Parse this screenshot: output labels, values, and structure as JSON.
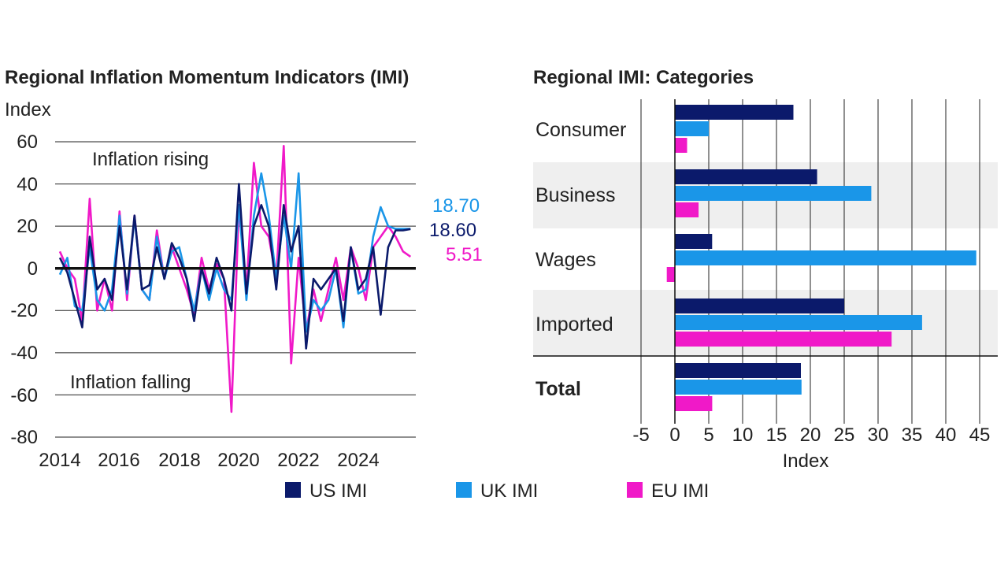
{
  "chart_data": [
    {
      "type": "line",
      "title": "Regional Inflation Momentum Indicators (IMI)",
      "ylabel": "Index",
      "ylim": [
        -80,
        60
      ],
      "yticks": [
        60,
        40,
        20,
        0,
        -20,
        -40,
        -60,
        -80
      ],
      "xlim": [
        2014,
        2025.8
      ],
      "xticks": [
        "2014",
        "2016",
        "2018",
        "2020",
        "2022",
        "2024"
      ],
      "annotations": {
        "rising": "Inflation rising",
        "falling": "Inflation falling"
      },
      "end_labels": [
        "18.70",
        "18.60",
        "5.51"
      ],
      "series": [
        {
          "name": "US IMI",
          "color": "#0b1a6b",
          "x": [
            2014.0,
            2014.25,
            2014.5,
            2014.75,
            2015.0,
            2015.25,
            2015.5,
            2015.75,
            2016.0,
            2016.25,
            2016.5,
            2016.75,
            2017.0,
            2017.25,
            2017.5,
            2017.75,
            2018.0,
            2018.25,
            2018.5,
            2018.75,
            2019.0,
            2019.25,
            2019.5,
            2019.75,
            2020.0,
            2020.25,
            2020.5,
            2020.75,
            2021.0,
            2021.25,
            2021.5,
            2021.75,
            2022.0,
            2022.25,
            2022.5,
            2022.75,
            2023.0,
            2023.25,
            2023.5,
            2023.75,
            2024.0,
            2024.25,
            2024.5,
            2024.75,
            2025.0,
            2025.25,
            2025.5,
            2025.75
          ],
          "y": [
            5,
            -2,
            -15,
            -28,
            15,
            -10,
            -5,
            -15,
            20,
            -10,
            25,
            -10,
            -8,
            10,
            -5,
            12,
            5,
            -5,
            -25,
            0,
            -12,
            5,
            -5,
            -20,
            40,
            -12,
            20,
            30,
            20,
            -10,
            30,
            8,
            20,
            -38,
            -5,
            -10,
            -5,
            0,
            -25,
            10,
            -10,
            -5,
            10,
            -22,
            10,
            18,
            18,
            18.6
          ]
        },
        {
          "name": "UK IMI",
          "color": "#1a96e8",
          "x": [
            2014.0,
            2014.25,
            2014.5,
            2014.75,
            2015.0,
            2015.25,
            2015.5,
            2015.75,
            2016.0,
            2016.25,
            2016.5,
            2016.75,
            2017.0,
            2017.25,
            2017.5,
            2017.75,
            2018.0,
            2018.25,
            2018.5,
            2018.75,
            2019.0,
            2019.25,
            2019.5,
            2019.75,
            2020.0,
            2020.25,
            2020.5,
            2020.75,
            2021.0,
            2021.25,
            2021.5,
            2021.75,
            2022.0,
            2022.25,
            2022.5,
            2022.75,
            2023.0,
            2023.25,
            2023.5,
            2023.75,
            2024.0,
            2024.25,
            2024.5,
            2024.75,
            2025.0,
            2025.25,
            2025.5,
            2025.75
          ],
          "y": [
            -3,
            5,
            -18,
            -20,
            10,
            -15,
            -20,
            -10,
            25,
            -12,
            24,
            -10,
            -15,
            15,
            -5,
            8,
            10,
            -5,
            -20,
            0,
            -15,
            0,
            -10,
            -15,
            30,
            -15,
            25,
            45,
            25,
            -5,
            25,
            0,
            45,
            -30,
            -15,
            -20,
            -15,
            0,
            -28,
            10,
            -12,
            -10,
            15,
            29,
            20,
            18.7,
            18.7,
            18.7
          ]
        },
        {
          "name": "EU IMI",
          "color": "#f019c8",
          "x": [
            2014.0,
            2014.25,
            2014.5,
            2014.75,
            2015.0,
            2015.25,
            2015.5,
            2015.75,
            2016.0,
            2016.25,
            2016.5,
            2016.75,
            2017.0,
            2017.25,
            2017.5,
            2017.75,
            2018.0,
            2018.25,
            2018.5,
            2018.75,
            2019.0,
            2019.25,
            2019.5,
            2019.75,
            2020.0,
            2020.25,
            2020.5,
            2020.75,
            2021.0,
            2021.25,
            2021.5,
            2021.75,
            2022.0,
            2022.25,
            2022.5,
            2022.75,
            2023.0,
            2023.25,
            2023.5,
            2023.75,
            2024.0,
            2024.25,
            2024.5,
            2024.75,
            2025.0,
            2025.25,
            2025.5,
            2025.75
          ],
          "y": [
            8,
            0,
            -5,
            -25,
            33,
            -20,
            -5,
            -20,
            27,
            -15,
            25,
            -10,
            -15,
            18,
            -5,
            10,
            0,
            -10,
            -22,
            5,
            -10,
            2,
            -5,
            -68,
            30,
            -10,
            50,
            20,
            15,
            -5,
            58,
            -45,
            5,
            -30,
            -10,
            -25,
            -10,
            5,
            -15,
            10,
            0,
            -15,
            10,
            15,
            20,
            15,
            8,
            5.51
          ]
        }
      ],
      "legend": [
        "US IMI",
        "UK IMI",
        "EU IMI"
      ]
    },
    {
      "type": "bar",
      "title": "Regional IMI: Categories",
      "orientation": "horizontal",
      "xlabel": "Index",
      "xlim": [
        -5,
        47
      ],
      "xticks": [
        "-5",
        "0",
        "5",
        "10",
        "15",
        "20",
        "25",
        "30",
        "35",
        "40",
        "45"
      ],
      "categories": [
        "Consumer",
        "Business",
        "Wages",
        "Imported",
        "Total"
      ],
      "series": [
        {
          "name": "US IMI",
          "color": "#0b1a6b",
          "values": [
            17.5,
            21,
            5.5,
            25,
            18.6
          ]
        },
        {
          "name": "UK IMI",
          "color": "#1a96e8",
          "values": [
            5,
            29,
            44.5,
            36.5,
            18.7
          ]
        },
        {
          "name": "EU IMI",
          "color": "#f019c8",
          "values": [
            1.8,
            3.5,
            -1.2,
            32,
            5.51
          ]
        }
      ]
    }
  ]
}
